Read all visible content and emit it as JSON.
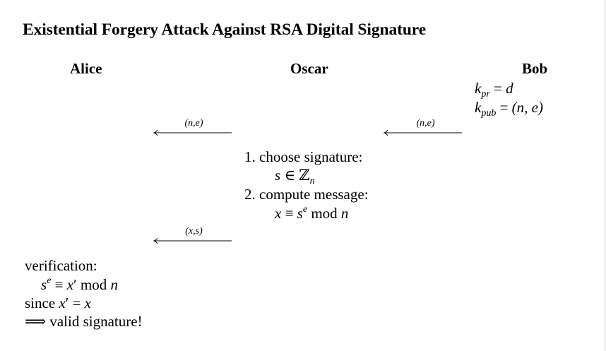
{
  "title": "Existential Forgery Attack Against RSA Digital Signature",
  "parties": {
    "alice": "Alice",
    "oscar": "Oscar",
    "bob": "Bob"
  },
  "bob_keys": {
    "kpr_k": "k",
    "kpr_sub": "pr",
    "kpr_eq": " = ",
    "kpr_val": "d",
    "kpub_k": "k",
    "kpub_sub": "pub",
    "kpub_eq": " = ",
    "kpub_val": "(n, e)"
  },
  "arrows": {
    "bob_to_oscar": "(n,e)",
    "oscar_to_alice_key": "(n,e)",
    "oscar_to_alice_msg": "(x,s)"
  },
  "oscar_steps": {
    "step1": "1. choose signature:",
    "step1_s": "s",
    "step1_in": " ∈ ",
    "step1_Z": "ℤ",
    "step1_n": "n",
    "step2": "2. compute message:",
    "step2_x": "x",
    "step2_eq": " ≡ ",
    "step2_s": "s",
    "step2_e": "e",
    "step2_mod": " mod ",
    "step2_n": "n"
  },
  "alice_verification": {
    "heading": "verification:",
    "line1_s": "s",
    "line1_e": "e",
    "line1_eq": " ≡ ",
    "line1_x": "x",
    "line1_prime": "′",
    "line1_mod": " mod ",
    "line1_n": "n",
    "since": "since ",
    "since_x": "x",
    "since_prime": "′",
    "since_eq": " = ",
    "since_x2": "x",
    "implies": "⟹",
    "valid": " valid signature!"
  }
}
